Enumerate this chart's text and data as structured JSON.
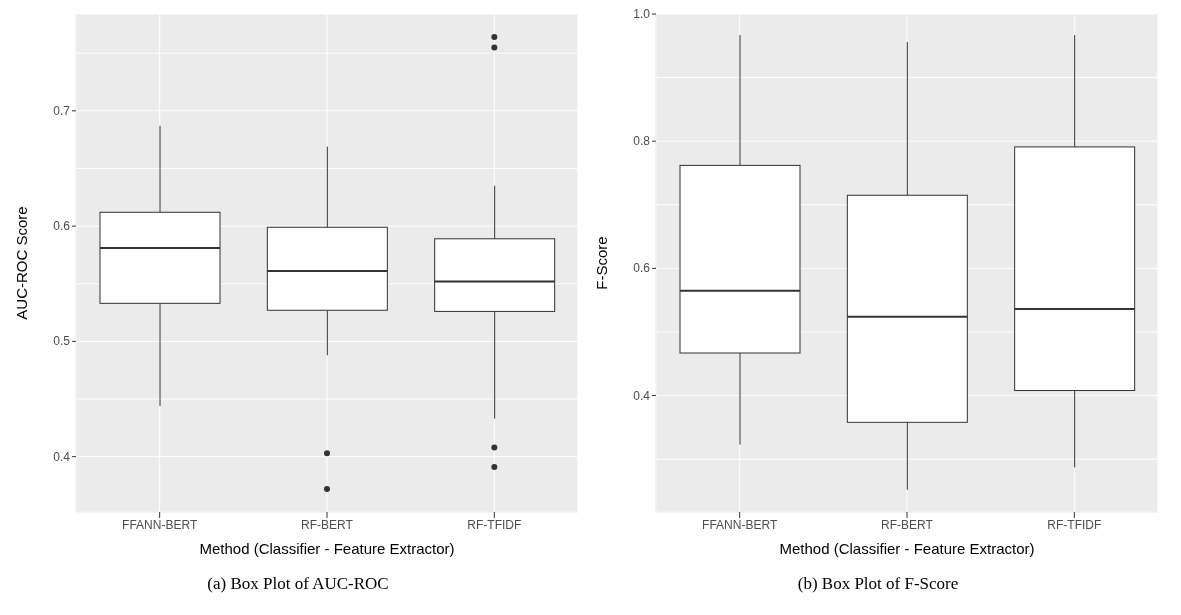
{
  "chart_data": [
    {
      "type": "box",
      "categories": [
        "FFANN-BERT",
        "RF-BERT",
        "RF-TFIDF"
      ],
      "xlabel": "Method (Classifier - Feature Extractor)",
      "ylabel": "AUC-ROC Score",
      "annotations": [
        "(a) Box Plot of AUC-ROC"
      ],
      "boxes": [
        {
          "low": 0.444,
          "q1": 0.533,
          "median": 0.581,
          "q3": 0.612,
          "high": 0.687
        },
        {
          "low": 0.488,
          "q1": 0.527,
          "median": 0.561,
          "q3": 0.599,
          "high": 0.669,
          "outliers": [
            0.403,
            0.372
          ]
        },
        {
          "low": 0.433,
          "q1": 0.526,
          "median": 0.552,
          "q3": 0.589,
          "high": 0.635,
          "outliers": [
            0.764,
            0.755,
            0.408,
            0.391
          ]
        }
      ],
      "ylim": [
        0.352,
        0.784
      ],
      "yticks": [
        {
          "value": 0.4,
          "label": "0.4"
        },
        {
          "value": 0.45,
          "label": null
        },
        {
          "value": 0.5,
          "label": "0.5"
        },
        {
          "value": 0.55,
          "label": null
        },
        {
          "value": 0.6,
          "label": "0.6"
        },
        {
          "value": 0.65,
          "label": null
        },
        {
          "value": 0.7,
          "label": "0.7"
        },
        {
          "value": 0.75,
          "label": null
        }
      ],
      "grid": true
    },
    {
      "type": "box",
      "categories": [
        "FFANN-BERT",
        "RF-BERT",
        "RF-TFIDF"
      ],
      "xlabel": "Method (Classifier - Feature Extractor)",
      "ylabel": "F-Score",
      "annotations": [
        "(b) Box Plot of F-Score"
      ],
      "boxes": [
        {
          "low": 0.323,
          "q1": 0.467,
          "median": 0.565,
          "q3": 0.762,
          "high": 0.967
        },
        {
          "low": 0.252,
          "q1": 0.358,
          "median": 0.524,
          "q3": 0.715,
          "high": 0.956
        },
        {
          "low": 0.287,
          "q1": 0.408,
          "median": 0.536,
          "q3": 0.791,
          "high": 0.967
        }
      ],
      "ylim": [
        0.217,
        1.0
      ],
      "yticks": [
        {
          "value": 0.3,
          "label": null
        },
        {
          "value": 0.4,
          "label": "0.4"
        },
        {
          "value": 0.5,
          "label": null
        },
        {
          "value": 0.6,
          "label": "0.6"
        },
        {
          "value": 0.7,
          "label": null
        },
        {
          "value": 0.8,
          "label": "0.8"
        },
        {
          "value": 0.9,
          "label": null
        },
        {
          "value": 1.0,
          "label": "1.0"
        }
      ],
      "grid": true
    }
  ]
}
